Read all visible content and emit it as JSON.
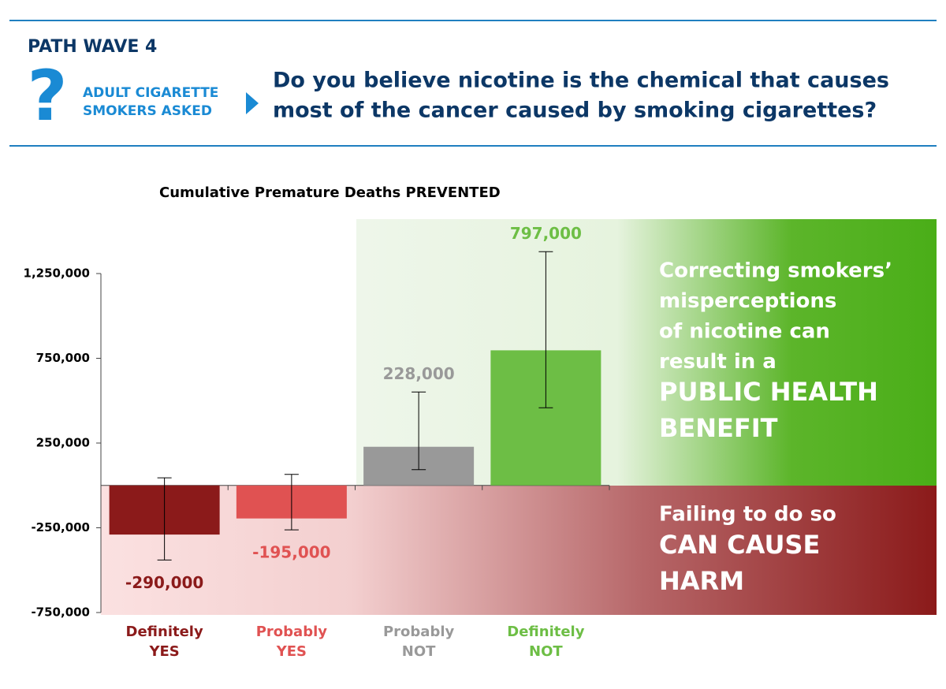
{
  "header": {
    "survey": "PATH WAVE 4",
    "icon": "?",
    "audience": [
      "ADULT CIGARETTE",
      "SMOKERS ASKED"
    ],
    "question": [
      "Do you believe nicotine is the chemical that causes",
      "most of the cancer caused by smoking cigarettes?"
    ]
  },
  "chart_data": {
    "type": "bar",
    "title": "Cumulative Premature Deaths PREVENTED",
    "categories": [
      "Definitely YES",
      "Probably YES",
      "Probably NOT",
      "Definitely NOT"
    ],
    "values": [
      -290000,
      -195000,
      228000,
      797000
    ],
    "value_labels": [
      "-290,000",
      "-195,000",
      "228,000",
      "797,000"
    ],
    "error_low": [
      -440000,
      -262000,
      93000,
      458000
    ],
    "error_high": [
      45000,
      65000,
      551000,
      1379000
    ],
    "colors": [
      "#8b1a1a",
      "#e05252",
      "#999999",
      "#6dbe45"
    ],
    "ylim": [
      -750000,
      1250000
    ],
    "yticks": [
      {
        "value": 1250000,
        "label": "1,250,000"
      },
      {
        "value": 750000,
        "label": "750,000"
      },
      {
        "value": 250000,
        "label": "250,000"
      },
      {
        "value": -250000,
        "label": "-250,000"
      },
      {
        "value": -750000,
        "label": "-750,000"
      }
    ],
    "annotations": {
      "benefit": [
        "Correcting smokers’",
        "misperceptions",
        "of nicotine can",
        "result in a"
      ],
      "benefit_emphasis": [
        "PUBLIC HEALTH",
        "BENEFIT"
      ],
      "harm": [
        "Failing to do so"
      ],
      "harm_emphasis": [
        "CAN CAUSE",
        "HARM"
      ]
    }
  }
}
